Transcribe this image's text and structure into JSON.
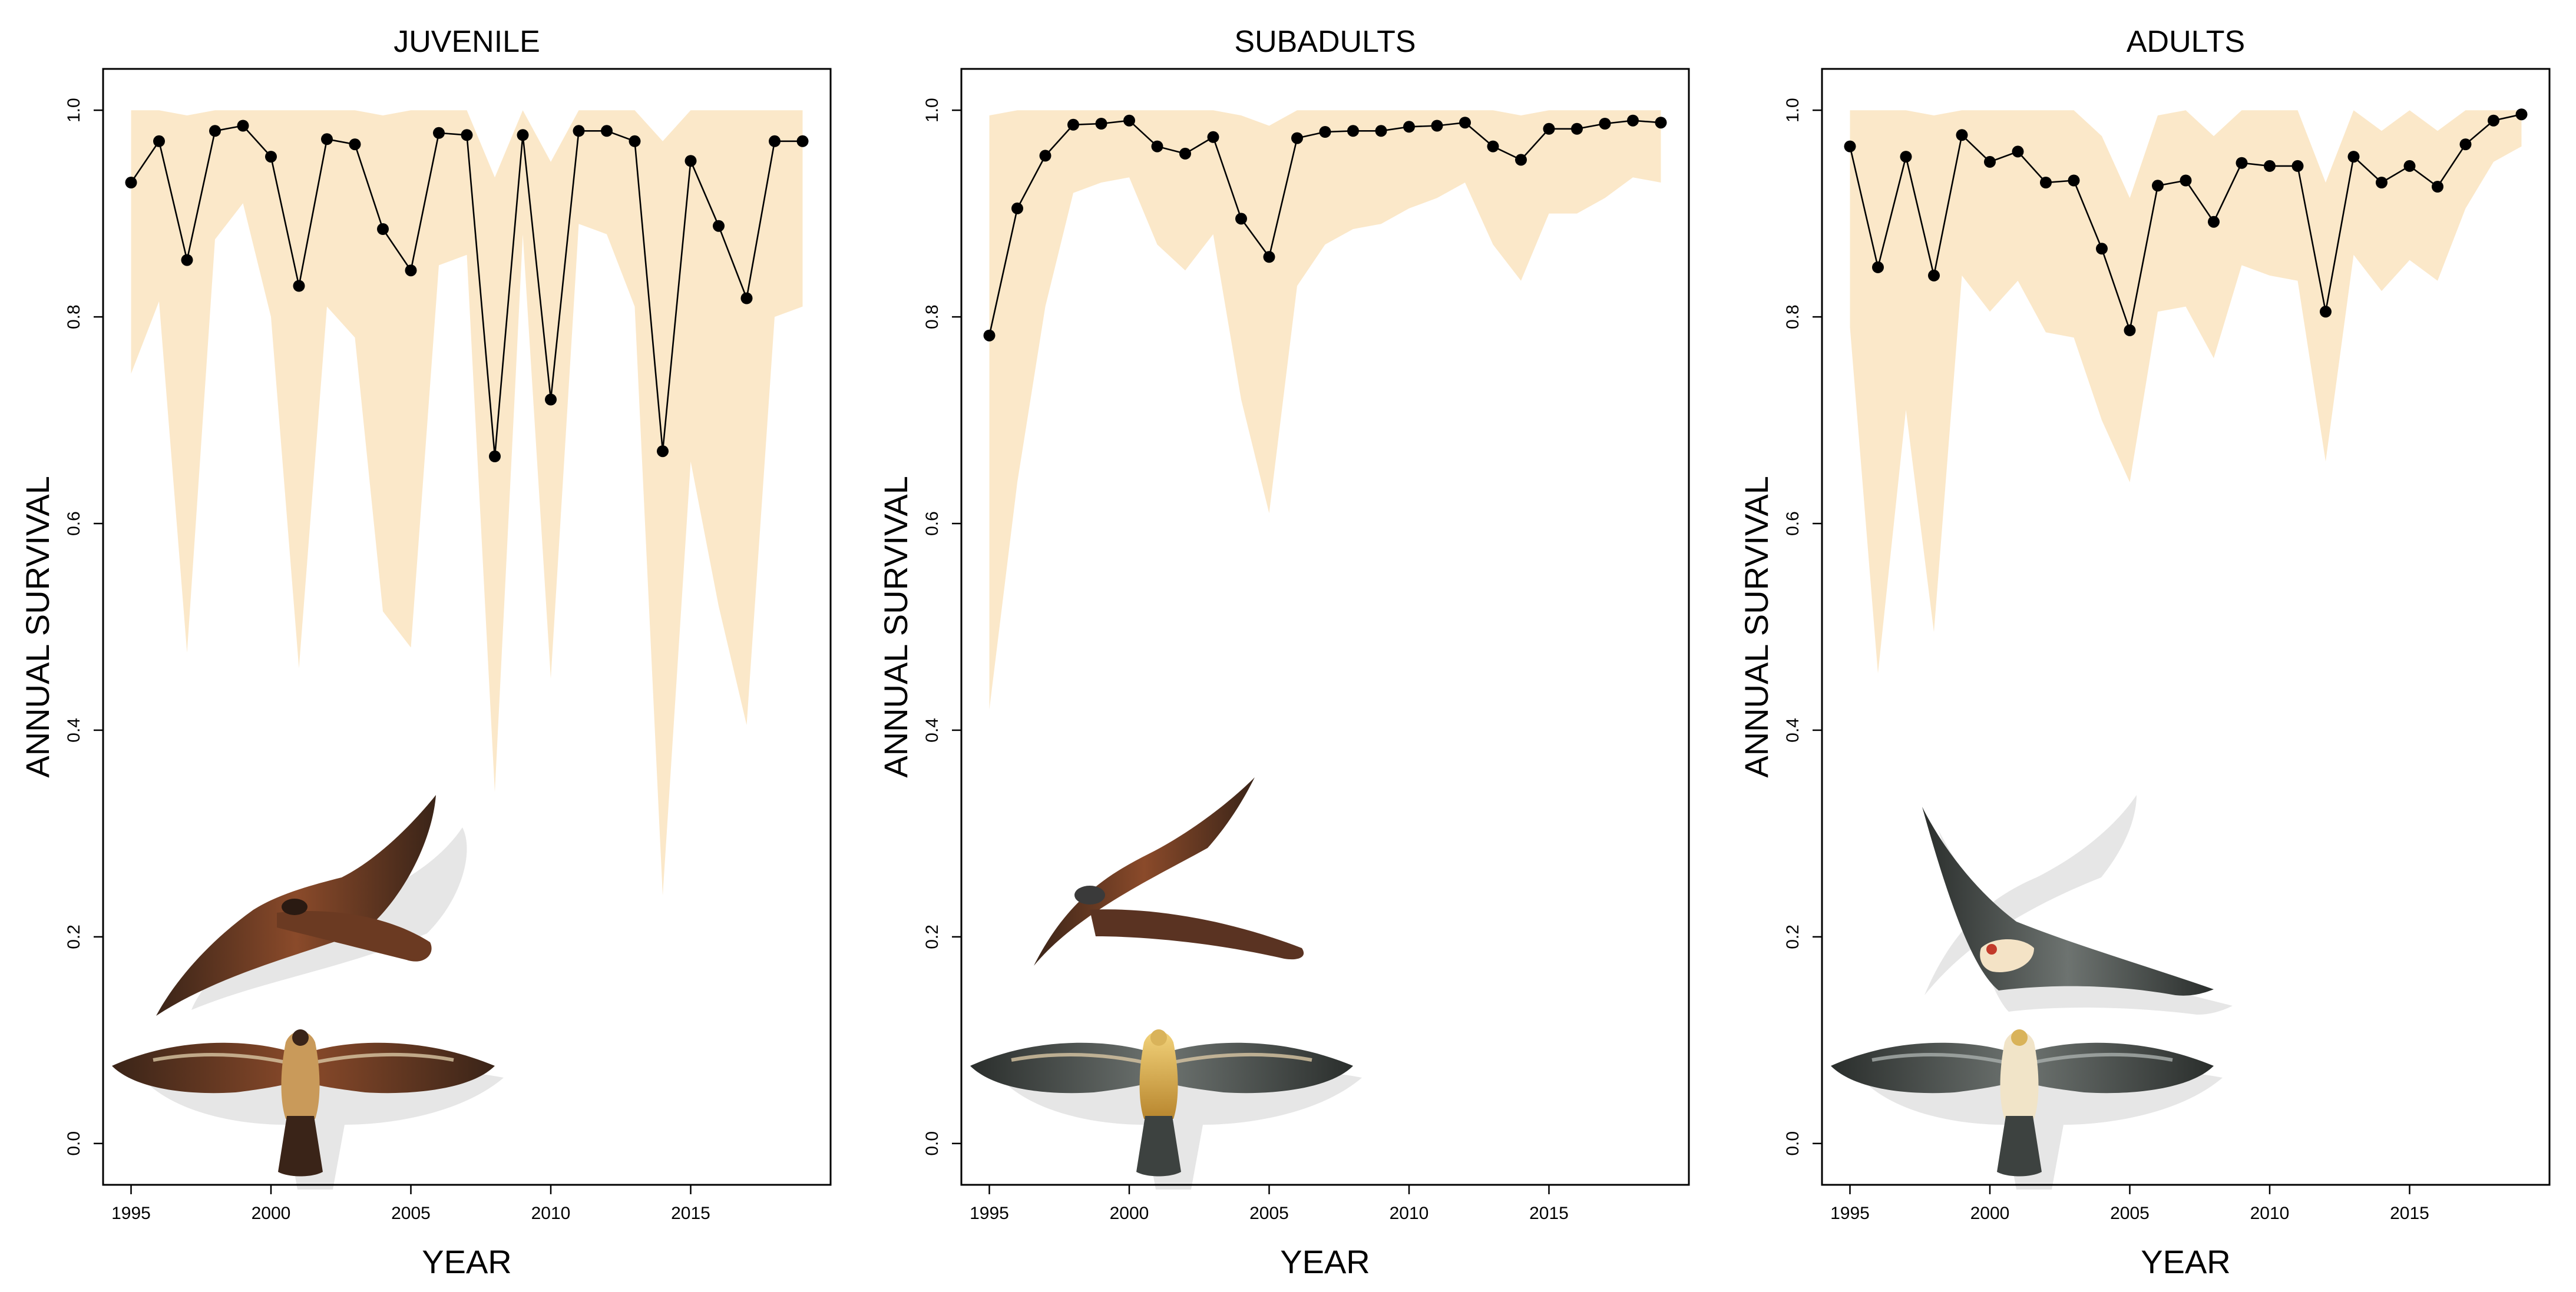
{
  "chart_data": [
    {
      "type": "line",
      "title": "JUVENILE",
      "xlabel": "YEAR",
      "ylabel": "ANNUAL SURVIVAL",
      "xlim": [
        1994,
        2020
      ],
      "ylim": [
        -0.04,
        1.04
      ],
      "xticks": [
        1995,
        2000,
        2005,
        2010,
        2015
      ],
      "yticks": [
        0.0,
        0.2,
        0.4,
        0.6,
        0.8,
        1.0
      ],
      "ytick_labels": [
        "0.0",
        "0.2",
        "0.4",
        "0.6",
        "0.8",
        "1.0"
      ],
      "grid": false,
      "band_color": "#fbe8c9",
      "point_color": "#000000",
      "x": [
        1995,
        1996,
        1997,
        1998,
        1999,
        2000,
        2001,
        2002,
        2003,
        2004,
        2005,
        2006,
        2007,
        2008,
        2009,
        2010,
        2011,
        2012,
        2013,
        2014,
        2015,
        2016,
        2017,
        2018,
        2019
      ],
      "y": [
        0.93,
        0.97,
        0.855,
        0.98,
        0.985,
        0.955,
        0.83,
        0.972,
        0.967,
        0.885,
        0.845,
        0.978,
        0.976,
        0.665,
        0.976,
        0.72,
        0.98,
        0.98,
        0.97,
        0.67,
        0.951,
        0.888,
        0.818,
        0.97,
        0.97
      ],
      "lower": [
        0.745,
        0.815,
        0.475,
        0.875,
        0.91,
        0.8,
        0.46,
        0.81,
        0.78,
        0.515,
        0.48,
        0.85,
        0.86,
        0.34,
        0.88,
        0.45,
        0.89,
        0.88,
        0.81,
        0.24,
        0.66,
        0.52,
        0.405,
        0.8,
        0.81
      ],
      "upper": [
        1.0,
        1.0,
        0.995,
        1.0,
        1.0,
        1.0,
        1.0,
        1.0,
        1.0,
        0.995,
        1.0,
        1.0,
        1.0,
        0.935,
        1.0,
        0.95,
        1.0,
        1.0,
        1.0,
        0.97,
        1.0,
        1.0,
        1.0,
        1.0,
        1.0
      ]
    },
    {
      "type": "line",
      "title": "SUBADULTS",
      "xlabel": "YEAR",
      "ylabel": "ANNUAL SURVIVAL",
      "xlim": [
        1994,
        2020
      ],
      "ylim": [
        -0.04,
        1.04
      ],
      "xticks": [
        1995,
        2000,
        2005,
        2010,
        2015
      ],
      "yticks": [
        0.0,
        0.2,
        0.4,
        0.6,
        0.8,
        1.0
      ],
      "ytick_labels": [
        "0.0",
        "0.2",
        "0.4",
        "0.6",
        "0.8",
        "1.0"
      ],
      "grid": false,
      "band_color": "#fbe8c9",
      "point_color": "#000000",
      "x": [
        1995,
        1996,
        1997,
        1998,
        1999,
        2000,
        2001,
        2002,
        2003,
        2004,
        2005,
        2006,
        2007,
        2008,
        2009,
        2010,
        2011,
        2012,
        2013,
        2014,
        2015,
        2016,
        2017,
        2018,
        2019
      ],
      "y": [
        0.782,
        0.905,
        0.956,
        0.986,
        0.987,
        0.99,
        0.965,
        0.958,
        0.974,
        0.895,
        0.858,
        0.973,
        0.979,
        0.98,
        0.98,
        0.984,
        0.985,
        0.988,
        0.965,
        0.952,
        0.982,
        0.982,
        0.987,
        0.99,
        0.988
      ],
      "lower": [
        0.42,
        0.64,
        0.81,
        0.92,
        0.93,
        0.935,
        0.87,
        0.845,
        0.88,
        0.72,
        0.61,
        0.83,
        0.87,
        0.885,
        0.89,
        0.905,
        0.915,
        0.93,
        0.87,
        0.835,
        0.9,
        0.9,
        0.915,
        0.935,
        0.93
      ],
      "upper": [
        0.995,
        1.0,
        1.0,
        1.0,
        1.0,
        1.0,
        1.0,
        1.0,
        1.0,
        0.995,
        0.985,
        1.0,
        1.0,
        1.0,
        1.0,
        1.0,
        1.0,
        1.0,
        1.0,
        0.995,
        1.0,
        1.0,
        1.0,
        1.0,
        1.0
      ]
    },
    {
      "type": "line",
      "title": "ADULTS",
      "xlabel": "YEAR",
      "ylabel": "ANNUAL SURVIVAL",
      "xlim": [
        1994,
        2020
      ],
      "ylim": [
        -0.04,
        1.04
      ],
      "xticks": [
        1995,
        2000,
        2005,
        2010,
        2015
      ],
      "yticks": [
        0.0,
        0.2,
        0.4,
        0.6,
        0.8,
        1.0
      ],
      "ytick_labels": [
        "0.0",
        "0.2",
        "0.4",
        "0.6",
        "0.8",
        "1.0"
      ],
      "grid": false,
      "band_color": "#fbe8c9",
      "point_color": "#000000",
      "x": [
        1995,
        1996,
        1997,
        1998,
        1999,
        2000,
        2001,
        2002,
        2003,
        2004,
        2005,
        2006,
        2007,
        2008,
        2009,
        2010,
        2011,
        2012,
        2013,
        2014,
        2015,
        2016,
        2017,
        2018,
        2019
      ],
      "y": [
        0.965,
        0.848,
        0.955,
        0.84,
        0.976,
        0.95,
        0.96,
        0.93,
        0.932,
        0.866,
        0.787,
        0.927,
        0.932,
        0.892,
        0.949,
        0.946,
        0.946,
        0.805,
        0.955,
        0.93,
        0.946,
        0.926,
        0.967,
        0.99,
        0.996
      ],
      "lower": [
        0.79,
        0.455,
        0.71,
        0.495,
        0.84,
        0.805,
        0.835,
        0.785,
        0.78,
        0.7,
        0.64,
        0.805,
        0.81,
        0.76,
        0.85,
        0.84,
        0.835,
        0.66,
        0.86,
        0.825,
        0.855,
        0.835,
        0.905,
        0.95,
        0.965
      ],
      "upper": [
        1.0,
        1.0,
        1.0,
        0.995,
        1.0,
        1.0,
        1.0,
        1.0,
        1.0,
        0.975,
        0.915,
        0.995,
        1.0,
        0.975,
        1.0,
        1.0,
        1.0,
        0.93,
        1.0,
        0.98,
        1.0,
        0.98,
        1.0,
        1.0,
        1.0
      ]
    }
  ],
  "illustrations": [
    [
      "juvenile-flying-side-illustration",
      "juvenile-flying-top-illustration"
    ],
    [
      "subadult-flying-side-illustration",
      "subadult-flying-top-illustration"
    ],
    [
      "adult-flying-side-illustration",
      "adult-flying-top-illustration"
    ]
  ]
}
